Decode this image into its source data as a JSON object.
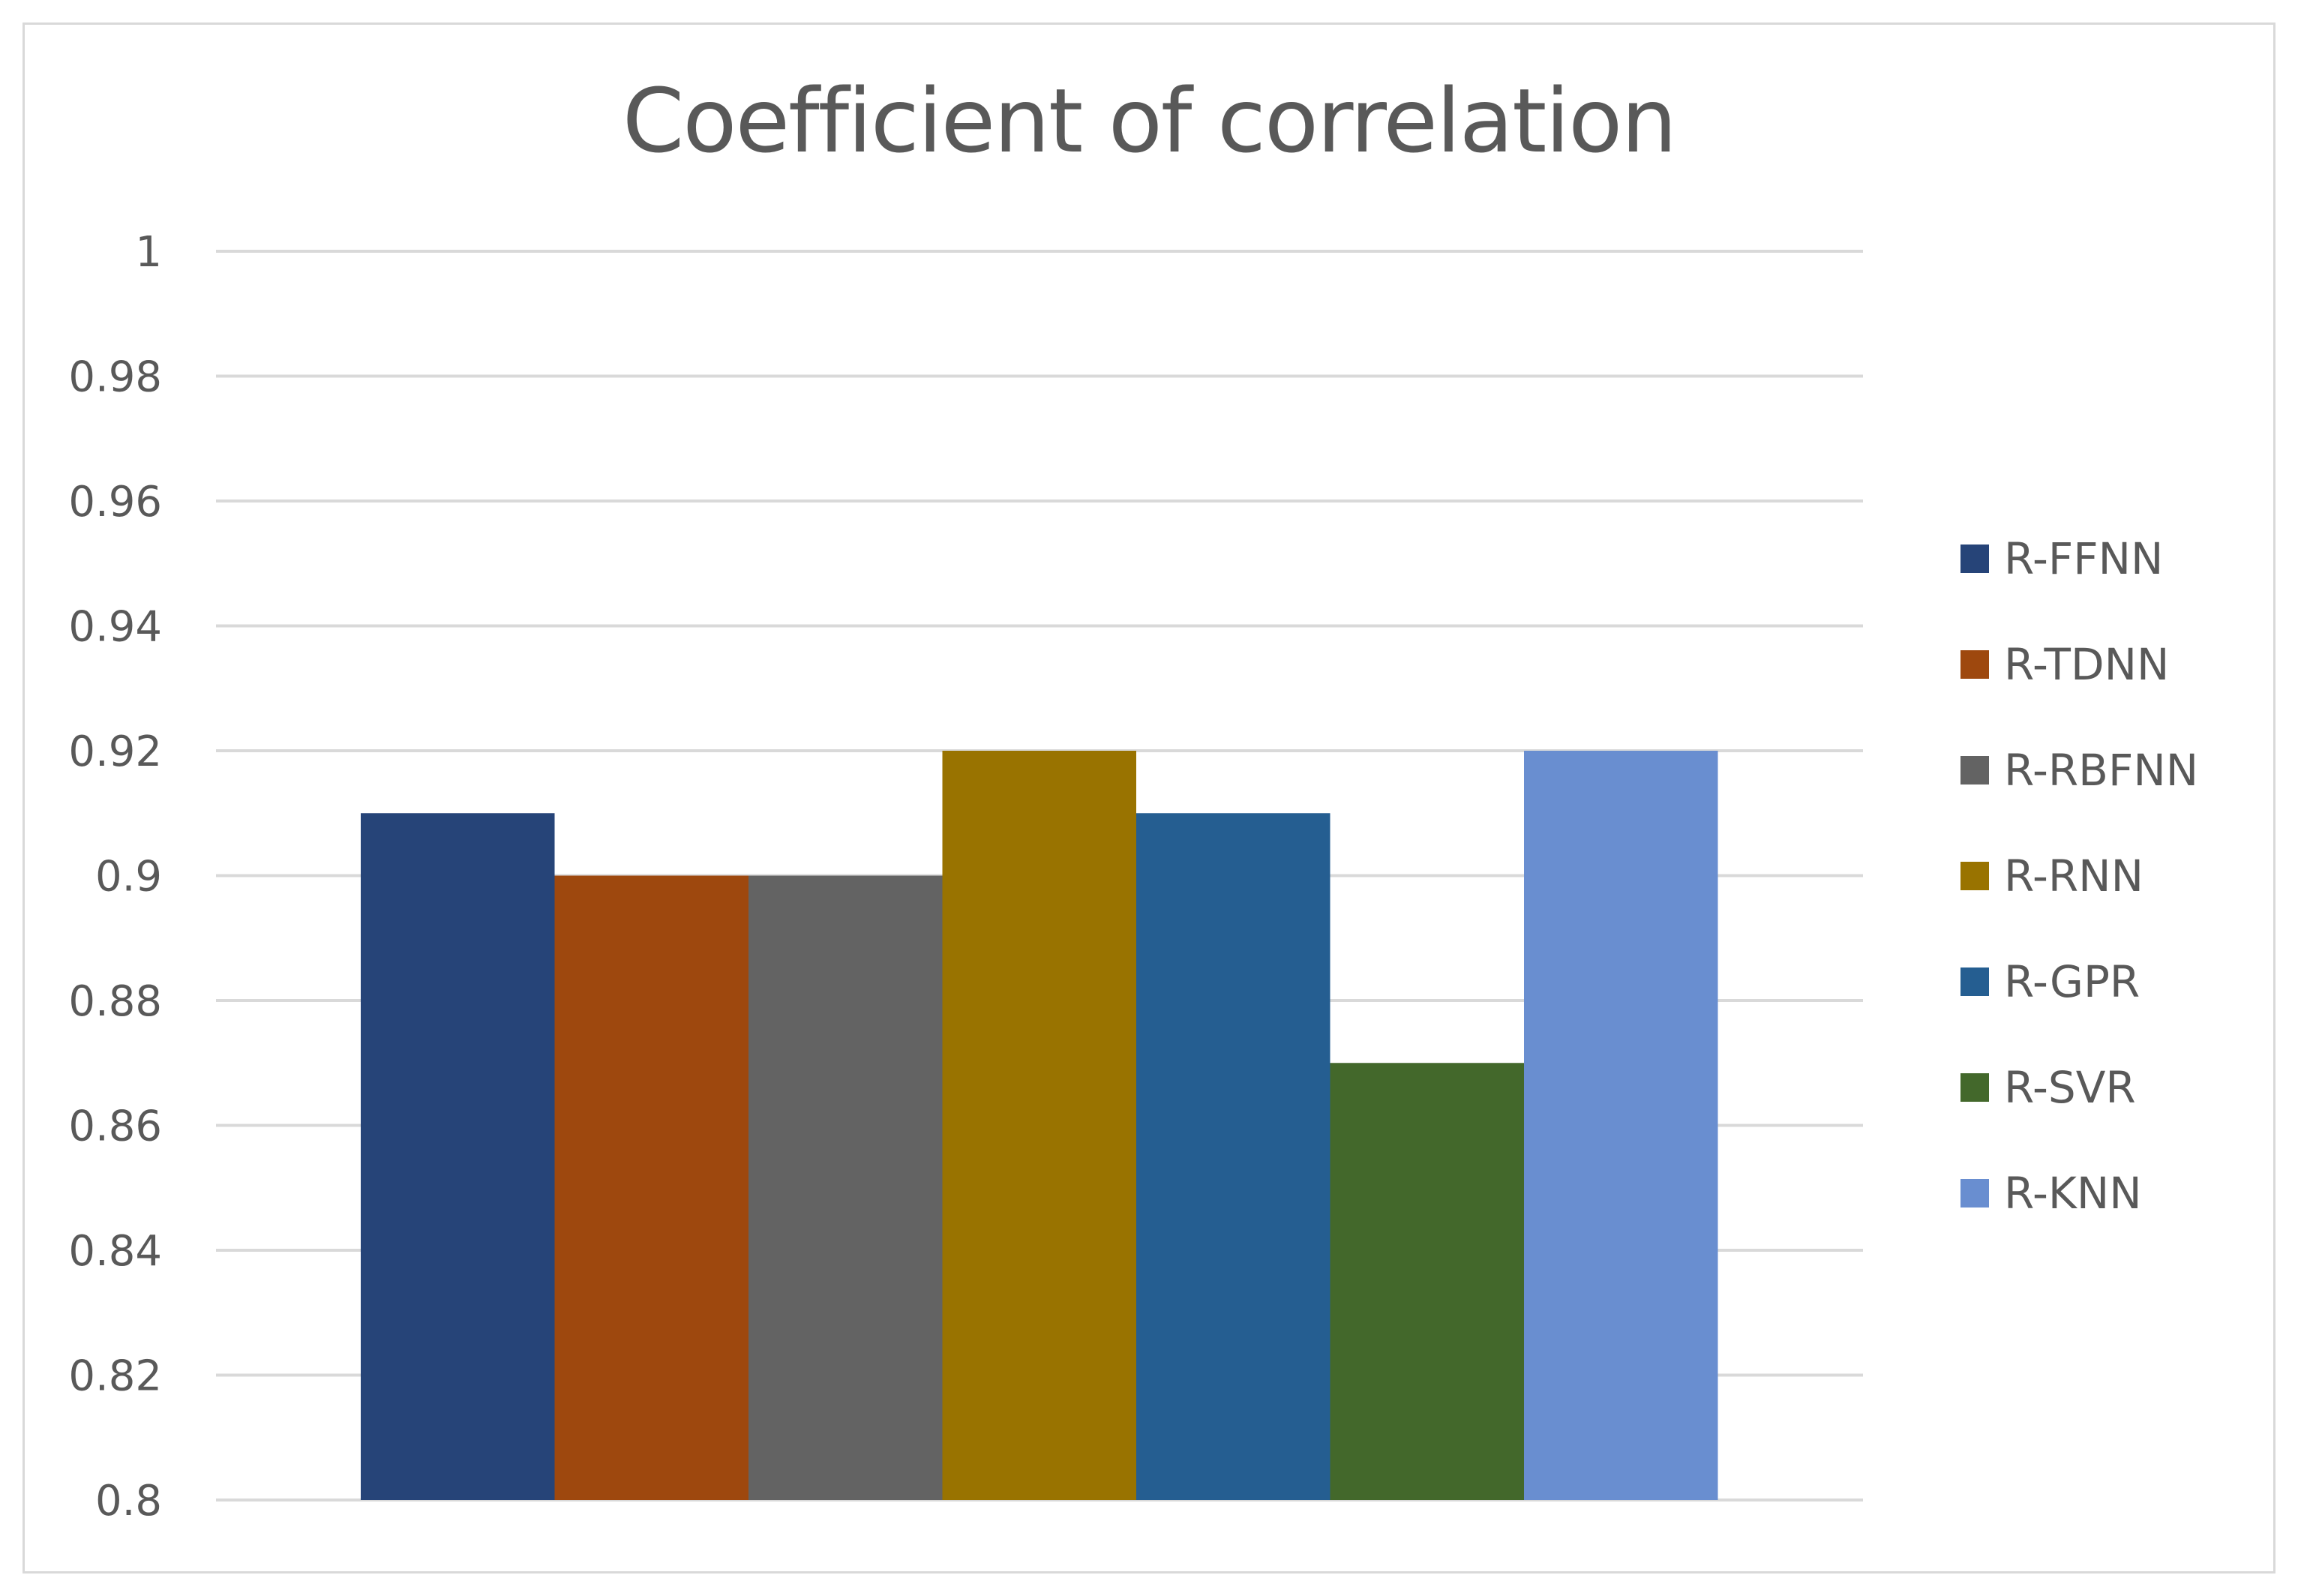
{
  "chart_data": {
    "type": "bar",
    "title": "Coefficient of correlation",
    "xlabel": "",
    "ylabel": "",
    "ylim": [
      0.8,
      1.0
    ],
    "ytick_step": 0.02,
    "yticks": [
      "1",
      "0.98",
      "0.96",
      "0.94",
      "0.92",
      "0.9",
      "0.88",
      "0.86",
      "0.84",
      "0.82",
      "0.8"
    ],
    "grid": true,
    "legend_position": "right",
    "series": [
      {
        "name": "R-FFNN",
        "value": 0.91,
        "color": "#264478"
      },
      {
        "name": "R-TDNN",
        "value": 0.9,
        "color": "#9E480E"
      },
      {
        "name": "R-RBFNN",
        "value": 0.9,
        "color": "#636363"
      },
      {
        "name": "R-RNN",
        "value": 0.92,
        "color": "#997300"
      },
      {
        "name": "R-GPR",
        "value": 0.91,
        "color": "#255E91"
      },
      {
        "name": "R-SVR",
        "value": 0.87,
        "color": "#43682B"
      },
      {
        "name": "R-KNN",
        "value": 0.92,
        "color": "#698ED0"
      }
    ]
  }
}
